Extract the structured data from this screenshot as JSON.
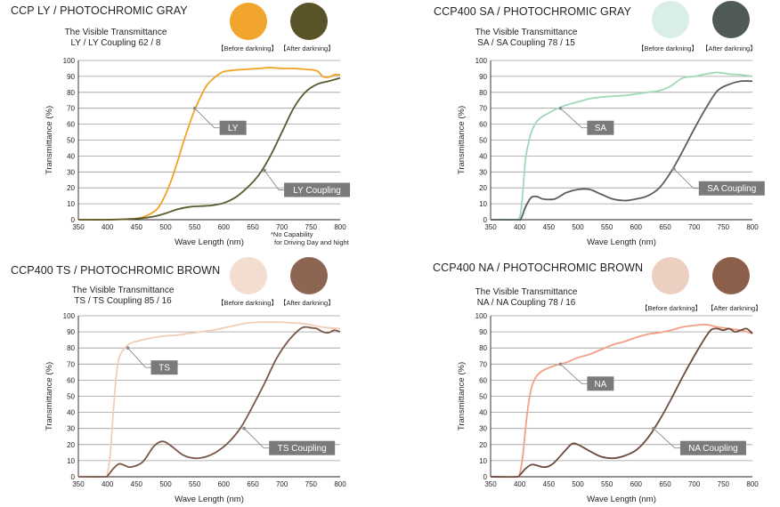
{
  "colors": {
    "grid": "#9b9b9b",
    "callout_fill": "#7a7a7a",
    "callout_text": "#ffffff",
    "ly_before": "#f0a325",
    "ly_after": "#5b5a2c",
    "sa_before": "#9fd9b6",
    "sa_after": "#565f5c",
    "ts_before": "#f3cdb6",
    "ts_after": "#7a5748",
    "na_before": "#f2a085",
    "na_after": "#6e4a3d",
    "lens_ly_before": "#f2a52c",
    "lens_ly_after": "#5a5327",
    "lens_sa_before": "#d9eee4",
    "lens_sa_after": "#4f5956",
    "lens_ts_before": "#f3ddd0",
    "lens_ts_after": "#8c6652",
    "lens_na_before": "#ebcfc0",
    "lens_na_after": "#8c5f4b"
  },
  "panels": [
    {
      "title": "CCP LY / PHOTOCHROMIC GRAY",
      "subtitle_line1": "The Visible Transmittance",
      "subtitle_line2": "LY / LY Coupling 62 /  8",
      "lens_before_label": "【Before darkning】",
      "lens_after_label": "【After darkning】",
      "footnote_line1": "*No Capability",
      "footnote_line2": "for Driving Day and Night"
    },
    {
      "title": "CCP400 SA / PHOTOCHROMIC GRAY",
      "subtitle_line1": "The Visible Transmittance",
      "subtitle_line2": "SA / SA Coupling 78 / 15",
      "lens_before_label": "【Before darkning】",
      "lens_after_label": "【After darkning】"
    },
    {
      "title": "CCP400 TS / PHOTOCHROMIC BROWN",
      "subtitle_line1": "The Visible Transmittance",
      "subtitle_line2": "TS / TS Coupling 85 / 16",
      "lens_before_label": "【Before darkning】",
      "lens_after_label": "【After darkning】"
    },
    {
      "title": "CCP400 NA / PHOTOCHROMIC BROWN",
      "subtitle_line1": "The Visible Transmittance",
      "subtitle_line2": "NA / NA Coupling 78 / 16",
      "lens_before_label": "【Before darkning】",
      "lens_after_label": "【After darkning】"
    }
  ],
  "chart_data": [
    {
      "type": "line",
      "xlabel": "Wave Length (nm)",
      "ylabel": "Transmittance (%)",
      "xlim": [
        350,
        800
      ],
      "ylim": [
        0,
        100
      ],
      "xticks": [
        350,
        400,
        450,
        500,
        550,
        600,
        650,
        700,
        750,
        800
      ],
      "yticks": [
        0,
        10,
        20,
        30,
        40,
        50,
        60,
        70,
        80,
        90,
        100
      ],
      "grid": true,
      "series": [
        {
          "name": "LY",
          "color": "#f0a325",
          "callout_at": [
            550,
            70
          ],
          "x": [
            350,
            400,
            440,
            460,
            480,
            490,
            500,
            510,
            520,
            530,
            540,
            550,
            560,
            570,
            580,
            590,
            600,
            620,
            640,
            660,
            680,
            700,
            720,
            740,
            760,
            770,
            780,
            790,
            800
          ],
          "y": [
            0,
            0,
            0.5,
            1.5,
            5,
            9,
            16,
            25,
            36,
            48,
            59,
            69,
            77,
            84,
            88,
            91,
            93,
            94,
            94.5,
            95,
            95.5,
            95,
            95,
            94.5,
            93.5,
            90,
            89.5,
            91,
            91
          ]
        },
        {
          "name": "LY Coupling",
          "color": "#5b5a2c",
          "callout_at": [
            670,
            31
          ],
          "x": [
            350,
            400,
            440,
            460,
            480,
            500,
            520,
            540,
            560,
            580,
            600,
            620,
            640,
            660,
            680,
            700,
            720,
            740,
            760,
            780,
            800
          ],
          "y": [
            0,
            0,
            0.5,
            1,
            2,
            4,
            6.5,
            8,
            8.5,
            9,
            10.5,
            14,
            20,
            28,
            40,
            55,
            70,
            80,
            85,
            87,
            89
          ]
        }
      ]
    },
    {
      "type": "line",
      "xlabel": "Wave Length (nm)",
      "ylabel": "Transmittance (%)",
      "xlim": [
        350,
        800
      ],
      "ylim": [
        0,
        100
      ],
      "xticks": [
        350,
        400,
        450,
        500,
        550,
        600,
        650,
        700,
        750,
        800
      ],
      "yticks": [
        0,
        10,
        20,
        30,
        40,
        50,
        60,
        70,
        80,
        90,
        100
      ],
      "grid": true,
      "series": [
        {
          "name": "SA",
          "color": "#9fd9b6",
          "callout_at": [
            470,
            70
          ],
          "x": [
            350,
            390,
            398,
            402,
            406,
            410,
            415,
            420,
            425,
            430,
            440,
            450,
            460,
            470,
            480,
            500,
            520,
            540,
            560,
            580,
            600,
            620,
            640,
            660,
            680,
            700,
            720,
            740,
            760,
            780,
            800
          ],
          "y": [
            0,
            0,
            0.5,
            5,
            20,
            38,
            48,
            55,
            59,
            62,
            65,
            67,
            69,
            70.5,
            72,
            74,
            76,
            77,
            77.5,
            78,
            79,
            80,
            81,
            84,
            89,
            90,
            91.5,
            92.5,
            91.5,
            91,
            90
          ]
        },
        {
          "name": "SA Coupling",
          "color": "#565f5c",
          "callout_at": [
            665,
            32
          ],
          "x": [
            350,
            395,
            402,
            410,
            420,
            430,
            440,
            460,
            480,
            500,
            520,
            540,
            560,
            580,
            600,
            620,
            640,
            660,
            680,
            700,
            720,
            740,
            760,
            780,
            800
          ],
          "y": [
            0,
            0,
            0.5,
            8,
            14,
            14.5,
            13,
            13,
            17,
            19,
            19,
            16,
            13,
            12,
            13,
            15,
            20,
            30,
            43,
            57,
            70,
            81,
            85,
            87,
            87
          ]
        }
      ]
    },
    {
      "type": "line",
      "xlabel": "Wave Length (nm)",
      "ylabel": "Transmittance (%)",
      "xlim": [
        350,
        800
      ],
      "ylim": [
        0,
        100
      ],
      "xticks": [
        350,
        400,
        450,
        500,
        550,
        600,
        650,
        700,
        750,
        800
      ],
      "yticks": [
        0,
        10,
        20,
        30,
        40,
        50,
        60,
        70,
        80,
        90,
        100
      ],
      "grid": true,
      "series": [
        {
          "name": "TS",
          "color": "#f3cdb6",
          "callout_at": [
            435,
            80
          ],
          "x": [
            350,
            395,
            400,
            405,
            410,
            415,
            420,
            430,
            440,
            460,
            480,
            500,
            520,
            540,
            560,
            580,
            600,
            620,
            640,
            660,
            680,
            700,
            720,
            740,
            760,
            780,
            800
          ],
          "y": [
            0,
            0,
            2,
            15,
            40,
            62,
            74,
            80,
            83,
            85,
            86.5,
            87.5,
            88,
            89,
            90,
            91,
            92.5,
            94,
            95.5,
            96,
            96,
            96,
            95.5,
            95,
            93.5,
            92.5,
            92
          ]
        },
        {
          "name": "TS Coupling",
          "color": "#7a5748",
          "callout_at": [
            635,
            30
          ],
          "x": [
            350,
            395,
            400,
            410,
            420,
            430,
            440,
            460,
            480,
            495,
            510,
            530,
            550,
            570,
            590,
            610,
            630,
            650,
            670,
            690,
            710,
            730,
            740,
            750,
            760,
            770,
            780,
            790,
            800
          ],
          "y": [
            0,
            0,
            0.5,
            5,
            8,
            7,
            6,
            9,
            19,
            22,
            19,
            13.5,
            11.5,
            12.5,
            16,
            22,
            31,
            44,
            58,
            73,
            84,
            91.5,
            93,
            92.5,
            92,
            90,
            89.5,
            91,
            90
          ]
        }
      ]
    },
    {
      "type": "line",
      "xlabel": "Wave Length (nm)",
      "ylabel": "Transmittance (%)",
      "xlim": [
        350,
        800
      ],
      "ylim": [
        0,
        100
      ],
      "xticks": [
        350,
        400,
        450,
        500,
        550,
        600,
        650,
        700,
        750,
        800
      ],
      "yticks": [
        0,
        10,
        20,
        30,
        40,
        50,
        60,
        70,
        80,
        90,
        100
      ],
      "grid": true,
      "series": [
        {
          "name": "NA",
          "color": "#f2a085",
          "callout_at": [
            470,
            70
          ],
          "x": [
            350,
            395,
            400,
            405,
            410,
            415,
            420,
            425,
            430,
            440,
            460,
            480,
            500,
            520,
            540,
            560,
            580,
            600,
            620,
            640,
            660,
            680,
            700,
            720,
            740,
            760,
            780,
            800
          ],
          "y": [
            0,
            0,
            2,
            12,
            30,
            45,
            55,
            60,
            63,
            66,
            69,
            71,
            74,
            76,
            79,
            82,
            84,
            86.5,
            88.5,
            89.5,
            91,
            93,
            94,
            94.5,
            93,
            92,
            91,
            89
          ]
        },
        {
          "name": "NA Coupling",
          "color": "#6e4a3d",
          "callout_at": [
            630,
            30
          ],
          "x": [
            350,
            395,
            400,
            410,
            420,
            430,
            440,
            450,
            460,
            480,
            490,
            500,
            520,
            540,
            560,
            580,
            600,
            620,
            640,
            660,
            680,
            700,
            720,
            730,
            740,
            750,
            760,
            770,
            780,
            790,
            800
          ],
          "y": [
            0,
            0,
            1,
            5,
            7.5,
            7,
            6,
            6.5,
            9,
            17,
            20.5,
            20,
            16,
            12.5,
            11.5,
            13,
            16.5,
            24,
            35,
            48,
            62,
            75,
            87,
            91.5,
            92,
            91,
            92,
            90,
            91,
            92,
            89
          ]
        }
      ]
    }
  ]
}
